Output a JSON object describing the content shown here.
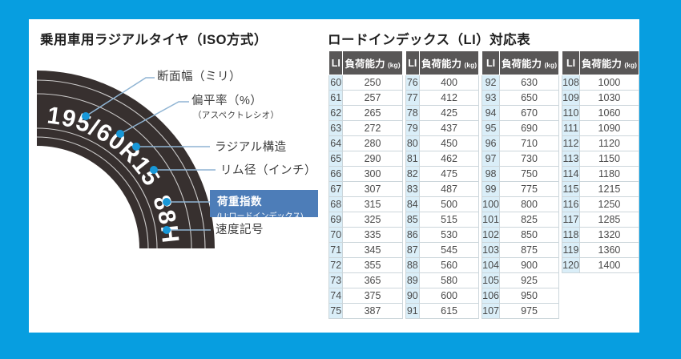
{
  "left": {
    "title": "乗用車用ラジアルタイヤ（ISO方式）",
    "tire_text": "195/60R15 88H",
    "labels": [
      {
        "text": "断面幅（ミリ）",
        "sub": ""
      },
      {
        "text": "偏平率（%）",
        "sub": "（アスペクトレシオ）"
      },
      {
        "text": "ラジアル構造",
        "sub": ""
      },
      {
        "text": "リム径（インチ）",
        "sub": ""
      },
      {
        "text": "荷重指数",
        "sub": "(LI:ロードインデックス)",
        "highlighted": true
      },
      {
        "text": "速度記号",
        "sub": ""
      }
    ]
  },
  "right": {
    "title": "ロードインデックス（LI）対応表",
    "table": {
      "col_headers": {
        "li": "LI",
        "capacity": "負荷能力",
        "unit": "(kg)"
      },
      "groups": [
        {
          "rows": [
            [
              60,
              250
            ],
            [
              61,
              257
            ],
            [
              62,
              265
            ],
            [
              63,
              272
            ],
            [
              64,
              280
            ],
            [
              65,
              290
            ],
            [
              66,
              300
            ],
            [
              67,
              307
            ],
            [
              68,
              315
            ],
            [
              69,
              325
            ],
            [
              70,
              335
            ],
            [
              71,
              345
            ],
            [
              72,
              355
            ],
            [
              73,
              365
            ],
            [
              74,
              375
            ],
            [
              75,
              387
            ]
          ]
        },
        {
          "rows": [
            [
              76,
              400
            ],
            [
              77,
              412
            ],
            [
              78,
              425
            ],
            [
              79,
              437
            ],
            [
              80,
              450
            ],
            [
              81,
              462
            ],
            [
              82,
              475
            ],
            [
              83,
              487
            ],
            [
              84,
              500
            ],
            [
              85,
              515
            ],
            [
              86,
              530
            ],
            [
              87,
              545
            ],
            [
              88,
              560
            ],
            [
              89,
              580
            ],
            [
              90,
              600
            ],
            [
              91,
              615
            ]
          ]
        },
        {
          "rows": [
            [
              92,
              630
            ],
            [
              93,
              650
            ],
            [
              94,
              670
            ],
            [
              95,
              690
            ],
            [
              96,
              710
            ],
            [
              97,
              730
            ],
            [
              98,
              750
            ],
            [
              99,
              775
            ],
            [
              100,
              800
            ],
            [
              101,
              825
            ],
            [
              102,
              850
            ],
            [
              103,
              875
            ],
            [
              104,
              900
            ],
            [
              105,
              925
            ],
            [
              106,
              950
            ],
            [
              107,
              975
            ]
          ]
        },
        {
          "rows": [
            [
              108,
              1000
            ],
            [
              109,
              1030
            ],
            [
              110,
              1060
            ],
            [
              111,
              1090
            ],
            [
              112,
              1120
            ],
            [
              113,
              1150
            ],
            [
              114,
              1180
            ],
            [
              115,
              1215
            ],
            [
              116,
              1250
            ],
            [
              117,
              1285
            ],
            [
              118,
              1320
            ],
            [
              119,
              1360
            ],
            [
              120,
              1400
            ]
          ]
        }
      ]
    }
  },
  "colors": {
    "frame_blue": "#079ee0",
    "panel_white": "#ffffff",
    "tire_body": "#37302f",
    "header_gray": "#595757",
    "li_cell_blue": "#daeef8",
    "cell_border": "#ccd6db",
    "marker_dot_blue": "#1898d8",
    "leader_line_blue": "#8fb4d3",
    "highlight_box_blue": "#4d7db8",
    "text_dark": "#3c3c3c"
  }
}
